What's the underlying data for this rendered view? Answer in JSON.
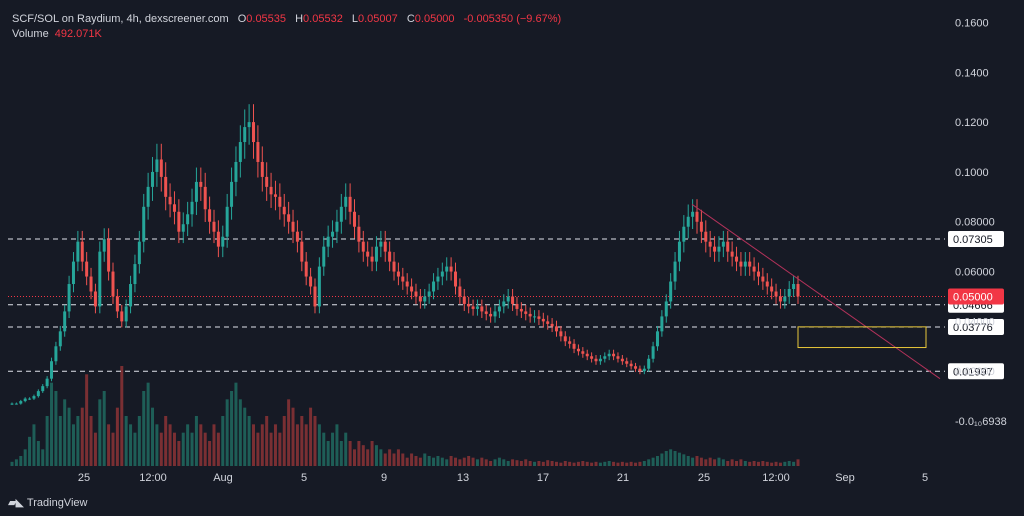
{
  "header": {
    "symbol": "SCF/SOL on Raydium, 4h, dexscreener.com",
    "o_label": "O",
    "o_value": "0.05535",
    "h_label": "H",
    "h_value": "0.05532",
    "l_label": "L",
    "l_value": "0.05007",
    "c_label": "C",
    "c_value": "0.05000",
    "change": "-0.005350 (−9.67%)",
    "volume_label": "Volume",
    "volume_value": "492.071K"
  },
  "branding": {
    "logo_text": "TradingView",
    "logo_icon": "tradingview-logo-icon"
  },
  "colors": {
    "background": "#161a25",
    "up": "#26a69a",
    "down": "#ef5350",
    "up_volume": "#1e5e57",
    "down_volume": "#7a2f33",
    "axis_text": "#d1d4dc",
    "price_label_bg": "#ffffff",
    "last_price_bg": "#f23645",
    "trendline": "#b2325a",
    "box": "#e8c83a"
  },
  "chart_data": {
    "type": "candlestick",
    "title": "SCF/SOL on Raydium, 4h, dexscreener.com",
    "y_ticks": [
      "0.1600",
      "0.1400",
      "0.1200",
      "0.1000",
      "0.08000",
      "0.06000",
      "0.04000",
      "0.02000",
      "-0.0₁₀6938"
    ],
    "y_tick_values": [
      0.16,
      0.14,
      0.12,
      0.1,
      0.08,
      0.06,
      0.04,
      0.02,
      0.0
    ],
    "x_ticks": [
      "25",
      "12:00",
      "Aug",
      "5",
      "9",
      "13",
      "17",
      "21",
      "25",
      "12:00",
      "Sep",
      "5"
    ],
    "ylim": [
      -0.002,
      0.163
    ],
    "last_price": "0.05000",
    "last_price_value": 0.05,
    "horizontal_levels": [
      {
        "label": "0.07305",
        "value": 0.07305
      },
      {
        "label": "0.04666",
        "value": 0.04666
      },
      {
        "label": "0.03776",
        "value": 0.03776
      },
      {
        "label": "0.01997",
        "value": 0.01997
      }
    ],
    "trendline": {
      "start_value": 0.087,
      "end_value": 0.017
    },
    "highlight_box": {
      "top_value": 0.0378,
      "bottom_value": 0.0295
    },
    "series": [
      {
        "name": "Price (close)",
        "values": [
          0.007,
          0.007,
          0.008,
          0.009,
          0.009,
          0.01,
          0.012,
          0.014,
          0.017,
          0.024,
          0.03,
          0.036,
          0.044,
          0.055,
          0.064,
          0.072,
          0.064,
          0.058,
          0.052,
          0.046,
          0.068,
          0.073,
          0.06,
          0.05,
          0.044,
          0.04,
          0.046,
          0.055,
          0.063,
          0.072,
          0.086,
          0.094,
          0.1,
          0.105,
          0.098,
          0.09,
          0.087,
          0.084,
          0.076,
          0.079,
          0.083,
          0.088,
          0.096,
          0.094,
          0.085,
          0.08,
          0.076,
          0.07,
          0.074,
          0.086,
          0.096,
          0.104,
          0.112,
          0.118,
          0.12,
          0.112,
          0.104,
          0.098,
          0.094,
          0.091,
          0.09,
          0.086,
          0.083,
          0.08,
          0.076,
          0.072,
          0.064,
          0.058,
          0.054,
          0.046,
          0.062,
          0.07,
          0.074,
          0.076,
          0.08,
          0.086,
          0.09,
          0.084,
          0.078,
          0.072,
          0.068,
          0.066,
          0.064,
          0.07,
          0.072,
          0.068,
          0.064,
          0.06,
          0.058,
          0.056,
          0.054,
          0.052,
          0.05,
          0.048,
          0.05,
          0.052,
          0.056,
          0.058,
          0.06,
          0.062,
          0.06,
          0.054,
          0.05,
          0.047,
          0.046,
          0.045,
          0.046,
          0.044,
          0.043,
          0.042,
          0.044,
          0.046,
          0.048,
          0.05,
          0.047,
          0.045,
          0.044,
          0.043,
          0.042,
          0.042,
          0.041,
          0.04,
          0.039,
          0.038,
          0.036,
          0.034,
          0.032,
          0.031,
          0.029,
          0.028,
          0.027,
          0.026,
          0.025,
          0.024,
          0.025,
          0.026,
          0.027,
          0.026,
          0.025,
          0.024,
          0.023,
          0.022,
          0.021,
          0.02,
          0.021,
          0.025,
          0.03,
          0.036,
          0.042,
          0.048,
          0.056,
          0.064,
          0.072,
          0.078,
          0.082,
          0.084,
          0.08,
          0.076,
          0.072,
          0.07,
          0.068,
          0.07,
          0.072,
          0.068,
          0.066,
          0.064,
          0.062,
          0.064,
          0.062,
          0.06,
          0.058,
          0.056,
          0.054,
          0.052,
          0.05,
          0.048,
          0.05,
          0.053,
          0.055,
          0.05
        ]
      }
    ],
    "volume_series": {
      "name": "Volume",
      "values": [
        0.05,
        0.08,
        0.12,
        0.2,
        0.35,
        0.5,
        0.3,
        0.2,
        0.6,
        1.0,
        0.9,
        0.6,
        0.8,
        0.7,
        0.5,
        0.6,
        0.7,
        1.1,
        0.6,
        0.4,
        0.8,
        0.9,
        0.5,
        0.4,
        0.7,
        1.2,
        0.6,
        0.5,
        0.4,
        0.6,
        0.9,
        1.0,
        0.7,
        0.5,
        0.4,
        0.6,
        0.5,
        0.4,
        0.3,
        0.4,
        0.5,
        0.4,
        0.6,
        0.5,
        0.4,
        0.3,
        0.5,
        0.4,
        0.6,
        0.8,
        0.9,
        1.0,
        0.8,
        0.7,
        0.6,
        0.5,
        0.4,
        0.5,
        0.6,
        0.4,
        0.5,
        0.4,
        0.6,
        0.8,
        0.7,
        0.5,
        0.6,
        0.5,
        0.7,
        0.6,
        0.5,
        0.4,
        0.3,
        0.4,
        0.5,
        0.3,
        0.4,
        0.3,
        0.2,
        0.3,
        0.25,
        0.2,
        0.3,
        0.25,
        0.2,
        0.15,
        0.2,
        0.15,
        0.2,
        0.15,
        0.1,
        0.15,
        0.12,
        0.1,
        0.15,
        0.12,
        0.1,
        0.12,
        0.1,
        0.08,
        0.12,
        0.1,
        0.08,
        0.1,
        0.12,
        0.1,
        0.08,
        0.1,
        0.08,
        0.06,
        0.08,
        0.1,
        0.08,
        0.06,
        0.08,
        0.07,
        0.06,
        0.08,
        0.06,
        0.05,
        0.06,
        0.05,
        0.07,
        0.06,
        0.05,
        0.04,
        0.06,
        0.05,
        0.04,
        0.05,
        0.06,
        0.05,
        0.04,
        0.05,
        0.04,
        0.05,
        0.06,
        0.05,
        0.04,
        0.05,
        0.04,
        0.05,
        0.04,
        0.05,
        0.06,
        0.08,
        0.1,
        0.12,
        0.15,
        0.18,
        0.2,
        0.18,
        0.16,
        0.14,
        0.12,
        0.1,
        0.12,
        0.1,
        0.08,
        0.1,
        0.08,
        0.1,
        0.08,
        0.06,
        0.08,
        0.06,
        0.08,
        0.06,
        0.05,
        0.06,
        0.05,
        0.06,
        0.05,
        0.04,
        0.05,
        0.04,
        0.05,
        0.06,
        0.05,
        0.08
      ]
    }
  }
}
